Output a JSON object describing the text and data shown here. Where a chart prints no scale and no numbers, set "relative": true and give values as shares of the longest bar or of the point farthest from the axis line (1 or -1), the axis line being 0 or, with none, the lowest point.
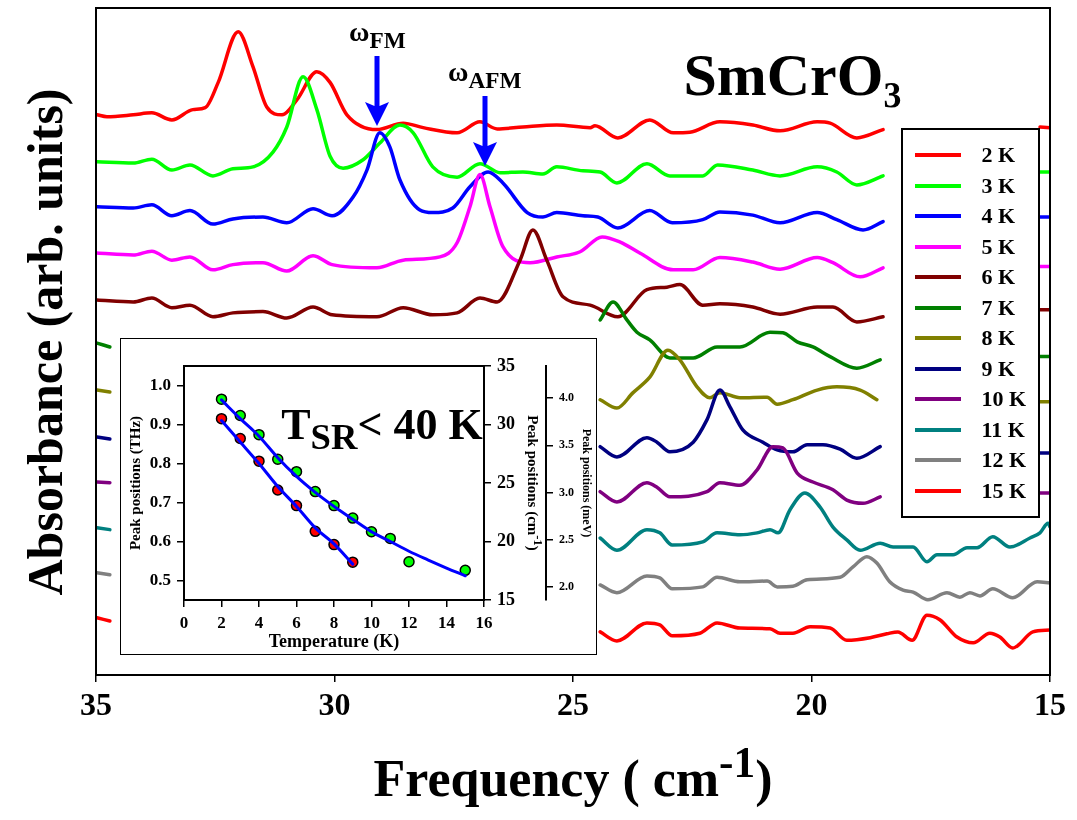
{
  "chart_data": [
    {
      "type": "line",
      "relative": true,
      "title": "SmCrO₃",
      "xlabel": "Frequency ( cm$^{-1}$)",
      "ylabel": "Absorbance (arb. units)",
      "xlim": [
        35,
        15
      ],
      "xticks": [
        35,
        30,
        25,
        20,
        15
      ],
      "legend": "right",
      "grid": false,
      "marker": "none",
      "line_style": "solid",
      "annotations": [
        {
          "text": "ω$_{FM}$",
          "x": 29.1,
          "y": 0.851
        },
        {
          "text": "ω$_{AFM}$",
          "x": 26.85,
          "y": 0.788
        }
      ],
      "series": [
        {
          "name": "2 K",
          "color": "#ff0000",
          "x": [
            34.98,
            34.77,
            34.22,
            33.83,
            33.41,
            32.97,
            32.71,
            32.44,
            32.02,
            31.71,
            31.42,
            31.1,
            30.79,
            30.37,
            30.09,
            29.74,
            29.11,
            28.56,
            28.14,
            27.43,
            26.95,
            26.59,
            26.05,
            25.34,
            24.64,
            24.54,
            24.06,
            23.39,
            22.9,
            22.55,
            21.92,
            21.23,
            20.66,
            19.88,
            19.61,
            19.05,
            18.5,
            17,
            15.21,
            15
          ],
          "values": [
            0.871,
            0.868,
            0.871,
            0.874,
            0.863,
            0.879,
            0.882,
            0.921,
            1.0,
            0.946,
            0.883,
            0.871,
            0.894,
            0.938,
            0.921,
            0.871,
            0.848,
            0.858,
            0.851,
            0.843,
            0.86,
            0.849,
            0.852,
            0.855,
            0.851,
            0.854,
            0.835,
            0.863,
            0.843,
            0.844,
            0.86,
            0.855,
            0.846,
            0.86,
            0.858,
            0.835,
            0.848,
            null,
            0.852,
            0.851
          ]
        },
        {
          "name": "3 K",
          "color": "#00ff00",
          "x": [
            34.98,
            34.22,
            33.83,
            33.41,
            33.03,
            32.55,
            32.13,
            31.71,
            31.29,
            31.0,
            30.66,
            30.37,
            30.09,
            29.82,
            29.4,
            29.05,
            28.63,
            28.35,
            27.94,
            27.43,
            26.95,
            26.53,
            26.05,
            25.63,
            25.34,
            24.79,
            24.43,
            24.08,
            23.45,
            22.97,
            22.28,
            21.97,
            21.23,
            20.66,
            19.88,
            19.47,
            19.05,
            18.5,
            17,
            15.21,
            15
          ],
          "values": [
            0.798,
            0.796,
            0.802,
            0.785,
            0.793,
            0.776,
            0.787,
            0.79,
            0.813,
            0.852,
            0.93,
            0.879,
            0.806,
            0.788,
            0.801,
            0.827,
            0.855,
            0.843,
            0.79,
            0.774,
            0.795,
            0.781,
            0.782,
            0.779,
            0.79,
            0.784,
            0.782,
            0.765,
            0.795,
            0.776,
            0.776,
            0.793,
            0.785,
            0.776,
            0.79,
            0.782,
            0.762,
            0.776,
            null,
            0.782,
            0.782
          ]
        },
        {
          "name": "4 K",
          "color": "#0000ff",
          "x": [
            34.98,
            34.22,
            33.83,
            33.41,
            33.03,
            32.55,
            32.13,
            31.5,
            31.0,
            30.45,
            30.05,
            29.61,
            29.32,
            29.05,
            28.84,
            28.63,
            28.21,
            27.94,
            27.52,
            27.16,
            26.78,
            26.47,
            25.96,
            25.63,
            25.34,
            24.79,
            24.48,
            24.06,
            23.39,
            22.92,
            22.28,
            21.92,
            21.23,
            20.66,
            19.88,
            19.47,
            18.92,
            18.5,
            17,
            15.21,
            15
          ],
          "values": [
            0.728,
            0.726,
            0.731,
            0.714,
            0.722,
            0.701,
            0.709,
            0.712,
            0.703,
            0.725,
            0.714,
            0.743,
            0.785,
            0.843,
            0.821,
            0.77,
            0.723,
            0.719,
            0.726,
            0.759,
            0.782,
            0.765,
            0.719,
            0.712,
            0.719,
            0.714,
            0.712,
            0.695,
            0.722,
            0.703,
            0.708,
            0.72,
            0.715,
            0.703,
            0.719,
            0.708,
            0.692,
            0.705,
            null,
            0.712,
            0.712
          ]
        },
        {
          "name": "5 K",
          "color": "#ff00ff",
          "x": [
            34.98,
            34.22,
            33.83,
            33.41,
            33.03,
            32.55,
            32.13,
            31.5,
            31.0,
            30.45,
            30.05,
            29.11,
            28.56,
            27.79,
            27.43,
            27.16,
            26.95,
            26.74,
            26.47,
            25.9,
            25.34,
            24.85,
            24.39,
            24.01,
            23.6,
            22.9,
            22.48,
            21.92,
            21.23,
            20.66,
            19.88,
            19.55,
            18.98,
            18.5,
            17,
            15.21,
            15
          ],
          "values": [
            0.656,
            0.653,
            0.659,
            0.645,
            0.65,
            0.63,
            0.638,
            0.641,
            0.628,
            0.652,
            0.638,
            0.633,
            0.645,
            0.65,
            0.672,
            0.728,
            0.778,
            0.728,
            0.666,
            0.641,
            0.65,
            0.658,
            0.681,
            0.673,
            0.656,
            0.63,
            0.63,
            0.649,
            0.642,
            0.631,
            0.649,
            0.641,
            0.619,
            0.633,
            null,
            0.635,
            0.635
          ]
        },
        {
          "name": "6 K",
          "color": "#800000",
          "x": [
            34.98,
            34.22,
            33.83,
            33.41,
            33.03,
            32.55,
            32.13,
            31.5,
            31.0,
            30.45,
            30.05,
            29.11,
            28.56,
            27.94,
            27.43,
            26.95,
            26.59,
            26.11,
            25.84,
            25.55,
            25.21,
            24.64,
            24.06,
            23.45,
            23.03,
            22.76,
            22.28,
            21.92,
            21.23,
            20.66,
            19.88,
            19.55,
            19.05,
            18.5,
            17,
            15.21,
            15
          ],
          "values": [
            0.583,
            0.58,
            0.586,
            0.571,
            0.575,
            0.557,
            0.563,
            0.565,
            0.555,
            0.572,
            0.56,
            0.557,
            0.571,
            0.56,
            0.563,
            0.586,
            0.58,
            0.645,
            0.692,
            0.645,
            0.588,
            0.575,
            0.557,
            0.599,
            0.603,
            0.607,
            0.575,
            0.577,
            0.572,
            0.561,
            0.572,
            0.572,
            0.549,
            0.557,
            null,
            0.568,
            0.568
          ]
        },
        {
          "name": "7 K",
          "color": "#008000",
          "x": [
            34.98,
            34.71,
            30,
            24.43,
            24.16,
            23.87,
            23.66,
            23.39,
            22.97,
            22.48,
            21.98,
            21.5,
            20.87,
            20.6,
            20.3,
            19.97,
            19.61,
            19.05,
            18.56,
            17,
            15.21,
            15
          ],
          "values": [
            0.516,
            0.51,
            null,
            0.552,
            0.58,
            0.552,
            0.533,
            0.521,
            0.493,
            0.493,
            0.51,
            0.51,
            0.533,
            0.532,
            0.518,
            0.51,
            0.495,
            0.477,
            0.49,
            null,
            0.495,
            0.495
          ]
        },
        {
          "name": "8 K",
          "color": "#808000",
          "x": [
            34.98,
            34.71,
            30,
            24.43,
            24.08,
            23.74,
            23.39,
            23.01,
            22.76,
            22.4,
            22.13,
            21.92,
            21.5,
            20.93,
            20.72,
            20.39,
            19.88,
            19.47,
            18.98,
            18.63,
            17,
            15.21,
            15
          ],
          "values": [
            0.443,
            0.44,
            null,
            0.428,
            0.415,
            0.439,
            0.463,
            0.505,
            0.49,
            0.448,
            0.431,
            0.439,
            0.431,
            0.432,
            0.421,
            0.428,
            0.443,
            0.448,
            0.443,
            0.428,
            null,
            0.425,
            0.425
          ]
        },
        {
          "name": "9 K",
          "color": "#000080",
          "x": [
            34.98,
            34.71,
            30,
            24.43,
            24.08,
            23.45,
            23.24,
            22.97,
            22.48,
            22.19,
            21.92,
            21.71,
            21.44,
            21.02,
            20.72,
            20.39,
            20.09,
            19.76,
            19.4,
            19.05,
            18.56,
            17,
            15.21,
            15
          ],
          "values": [
            0.37,
            0.367,
            null,
            0.355,
            0.339,
            0.369,
            0.362,
            0.347,
            0.362,
            0.397,
            0.443,
            0.417,
            0.381,
            0.362,
            0.35,
            0.347,
            0.358,
            0.358,
            0.351,
            0.337,
            0.355,
            null,
            0.345,
            0.345
          ]
        },
        {
          "name": "10 K",
          "color": "#800080",
          "x": [
            34.98,
            34.71,
            30,
            24.43,
            24.08,
            23.45,
            23.24,
            22.97,
            22.19,
            21.92,
            21.5,
            21.14,
            20.81,
            20.6,
            20.3,
            19.97,
            19.55,
            19.26,
            18.92,
            18.56,
            17,
            15.21,
            15
          ],
          "values": [
            0.3,
            0.299,
            null,
            0.285,
            0.269,
            0.299,
            0.292,
            0.277,
            0.285,
            0.299,
            0.295,
            0.319,
            0.355,
            0.353,
            0.314,
            0.3,
            0.288,
            0.272,
            0.267,
            0.277,
            null,
            0.283,
            0.283
          ]
        },
        {
          "name": "11 K",
          "color": "#008080",
          "x": [
            34.98,
            34.71,
            30,
            24.43,
            24.08,
            23.45,
            23.18,
            22.92,
            22.28,
            21.98,
            21.5,
            21.14,
            20.87,
            20.7,
            20.45,
            20.14,
            19.82,
            19.55,
            19.26,
            18.98,
            18.56,
            18.29,
            17.87,
            17.58,
            17.37,
            17.03,
            16.74,
            16.53,
            16.2,
            15.84,
            15.42,
            15.21,
            15.04,
            15
          ],
          "values": [
            0.229,
            0.226,
            null,
            0.213,
            0.194,
            0.226,
            0.221,
            0.202,
            0.207,
            0.221,
            0.218,
            0.221,
            0.226,
            0.221,
            0.257,
            0.283,
            0.261,
            0.23,
            0.21,
            0.194,
            0.205,
            0.199,
            0.199,
            0.176,
            0.187,
            0.187,
            0.198,
            0.198,
            0.215,
            0.199,
            0.213,
            0.221,
            0.236,
            0.23
          ]
        },
        {
          "name": "12 K",
          "color": "#808080",
          "x": [
            34.98,
            34.71,
            30,
            24.43,
            24.08,
            23.45,
            23.18,
            22.92,
            22.28,
            21.98,
            21.5,
            20.93,
            20.72,
            20.39,
            20.09,
            19.4,
            19.13,
            18.84,
            18.63,
            18.36,
            18.08,
            17.87,
            17.56,
            17.16,
            16.89,
            16.68,
            16.47,
            16.2,
            15.78,
            15.27,
            15
          ],
          "values": [
            0.159,
            0.156,
            null,
            0.14,
            0.128,
            0.154,
            0.151,
            0.134,
            0.137,
            0.152,
            0.145,
            0.146,
            0.137,
            0.138,
            0.148,
            0.152,
            0.168,
            0.184,
            0.174,
            0.145,
            0.132,
            0.129,
            0.117,
            0.128,
            0.121,
            0.128,
            0.123,
            0.134,
            0.12,
            0.145,
            0.143
          ]
        },
        {
          "name": "15 K",
          "color": "#ff0000",
          "x": [
            34.98,
            34.71,
            30,
            24.43,
            24.08,
            23.45,
            23.18,
            22.92,
            22.34,
            21.98,
            21.5,
            20.87,
            20.66,
            20.39,
            20.03,
            19.61,
            19.26,
            18.77,
            18.42,
            18.19,
            17.89,
            17.58,
            17.31,
            16.95,
            16.61,
            16.26,
            16.05,
            15.78,
            15.36,
            15
          ],
          "values": [
            0.089,
            0.084,
            null,
            0.067,
            0.053,
            0.081,
            0.078,
            0.061,
            0.065,
            0.081,
            0.073,
            0.072,
            0.065,
            0.065,
            0.075,
            0.073,
            0.054,
            0.058,
            0.064,
            0.067,
            0.054,
            0.093,
            0.086,
            0.059,
            0.05,
            0.065,
            0.059,
            0.042,
            0.067,
            0.07
          ]
        }
      ]
    },
    {
      "type": "scatter",
      "xlabel": "Temperature (K)",
      "ylabel": "Peak positions (THz)",
      "y2label": "Peak positions (cm$^{-1}$)",
      "y3label": "Peak positions (meV)",
      "xlim": [
        0,
        16
      ],
      "xticks": [
        0,
        2,
        4,
        6,
        8,
        10,
        12,
        14,
        16
      ],
      "ylim": [
        0.45,
        1.05
      ],
      "yticks": [
        0.5,
        0.6,
        0.7,
        0.8,
        0.9,
        {
          "value": 1,
          "label": "1.0"
        }
      ],
      "y2lim": [
        15,
        35
      ],
      "y2ticks": [
        15,
        20,
        25,
        30,
        35
      ],
      "y3lim": [
        1.86,
        4.34
      ],
      "y3ticks": [
        {
          "value": 2,
          "label": "2.0"
        },
        2.5,
        {
          "value": 3,
          "label": "3.0"
        },
        3.5,
        {
          "value": 4,
          "label": "4.0"
        }
      ],
      "grid": false,
      "marker": "circle",
      "annotations": [
        "T$_{SR}$< 40 K"
      ],
      "series": [
        {
          "color": "#00ff00",
          "x": [
            2,
            3,
            4,
            5,
            6,
            7,
            8,
            9,
            10,
            11,
            12,
            15
          ],
          "values": [
            0.965,
            0.923,
            0.874,
            0.811,
            0.779,
            0.728,
            0.692,
            0.66,
            0.625,
            0.608,
            0.548,
            0.526
          ]
        },
        {
          "color": "#ff0000",
          "x": [
            2,
            3,
            4,
            5,
            6,
            7,
            8,
            9
          ],
          "values": [
            0.915,
            0.864,
            0.806,
            0.732,
            0.692,
            0.626,
            0.592,
            0.547
          ]
        },
        {
          "type": "line",
          "marker": "none",
          "color": "#0000ff",
          "x": [
            2,
            3,
            4,
            5,
            6,
            7,
            8,
            9,
            10,
            11,
            12,
            13,
            14,
            15
          ],
          "values": [
            0.963,
            0.915,
            0.87,
            0.815,
            0.767,
            0.726,
            0.69,
            0.657,
            0.625,
            0.6,
            0.575,
            0.553,
            0.532,
            0.512
          ]
        },
        {
          "type": "line",
          "marker": "none",
          "color": "#0000ff",
          "x": [
            2,
            3,
            4,
            5,
            6,
            7,
            8,
            9
          ],
          "values": [
            0.91,
            0.855,
            0.8,
            0.741,
            0.69,
            0.635,
            0.594,
            0.542
          ]
        }
      ]
    }
  ]
}
